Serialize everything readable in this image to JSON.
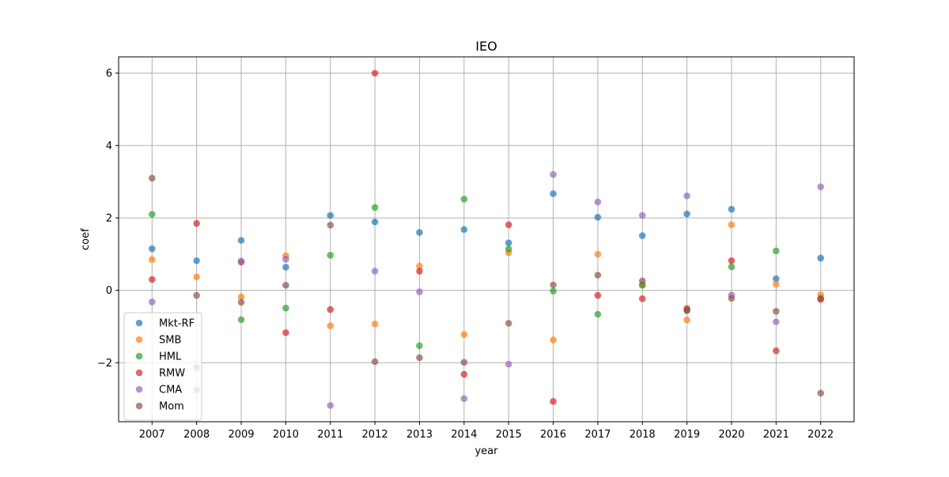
{
  "chart_data": {
    "type": "scatter",
    "title": "IEO",
    "xlabel": "year",
    "ylabel": "coef",
    "categories": [
      "2007",
      "2008",
      "2009",
      "2010",
      "2011",
      "2012",
      "2013",
      "2014",
      "2015",
      "2016",
      "2017",
      "2018",
      "2019",
      "2020",
      "2021",
      "2022"
    ],
    "ylim": [
      -3.63,
      6.45
    ],
    "yticks": [
      -2,
      0,
      2,
      4,
      6
    ],
    "grid": true,
    "legend_position": "lower-left",
    "series": [
      {
        "name": "Mkt-RF",
        "color": "#1f77b4",
        "values": [
          1.15,
          0.82,
          1.38,
          0.64,
          2.07,
          1.89,
          1.6,
          1.68,
          1.31,
          2.67,
          2.02,
          1.51,
          2.11,
          2.24,
          0.32,
          0.89
        ]
      },
      {
        "name": "SMB",
        "color": "#ff7f0e",
        "values": [
          0.85,
          0.37,
          -0.18,
          0.96,
          -0.98,
          -0.93,
          0.67,
          -1.22,
          1.04,
          -1.37,
          1.0,
          0.15,
          -0.82,
          1.81,
          0.17,
          -0.12
        ]
      },
      {
        "name": "HML",
        "color": "#2ca02c",
        "values": [
          2.1,
          -2.13,
          -0.81,
          -0.49,
          0.97,
          2.29,
          -1.53,
          2.52,
          1.14,
          -0.02,
          -0.66,
          0.14,
          -0.55,
          0.65,
          1.09,
          -0.22
        ]
      },
      {
        "name": "RMW",
        "color": "#d62728",
        "values": [
          0.3,
          1.85,
          0.78,
          -1.17,
          -0.53,
          6.0,
          0.53,
          -2.32,
          1.81,
          -3.07,
          -0.14,
          -0.23,
          -0.5,
          0.82,
          -1.67,
          -0.25
        ]
      },
      {
        "name": "CMA",
        "color": "#9467bd",
        "values": [
          -0.32,
          -2.75,
          0.81,
          0.86,
          -3.18,
          0.53,
          -0.04,
          -2.99,
          -2.04,
          3.2,
          2.44,
          2.07,
          2.61,
          -0.13,
          -0.87,
          2.86
        ]
      },
      {
        "name": "Mom",
        "color": "#8c564b",
        "values": [
          3.1,
          -0.14,
          -0.33,
          0.14,
          1.8,
          -1.97,
          -1.86,
          -1.99,
          -0.91,
          0.15,
          0.42,
          0.26,
          -0.56,
          -0.22,
          -0.58,
          -2.84
        ]
      }
    ]
  }
}
